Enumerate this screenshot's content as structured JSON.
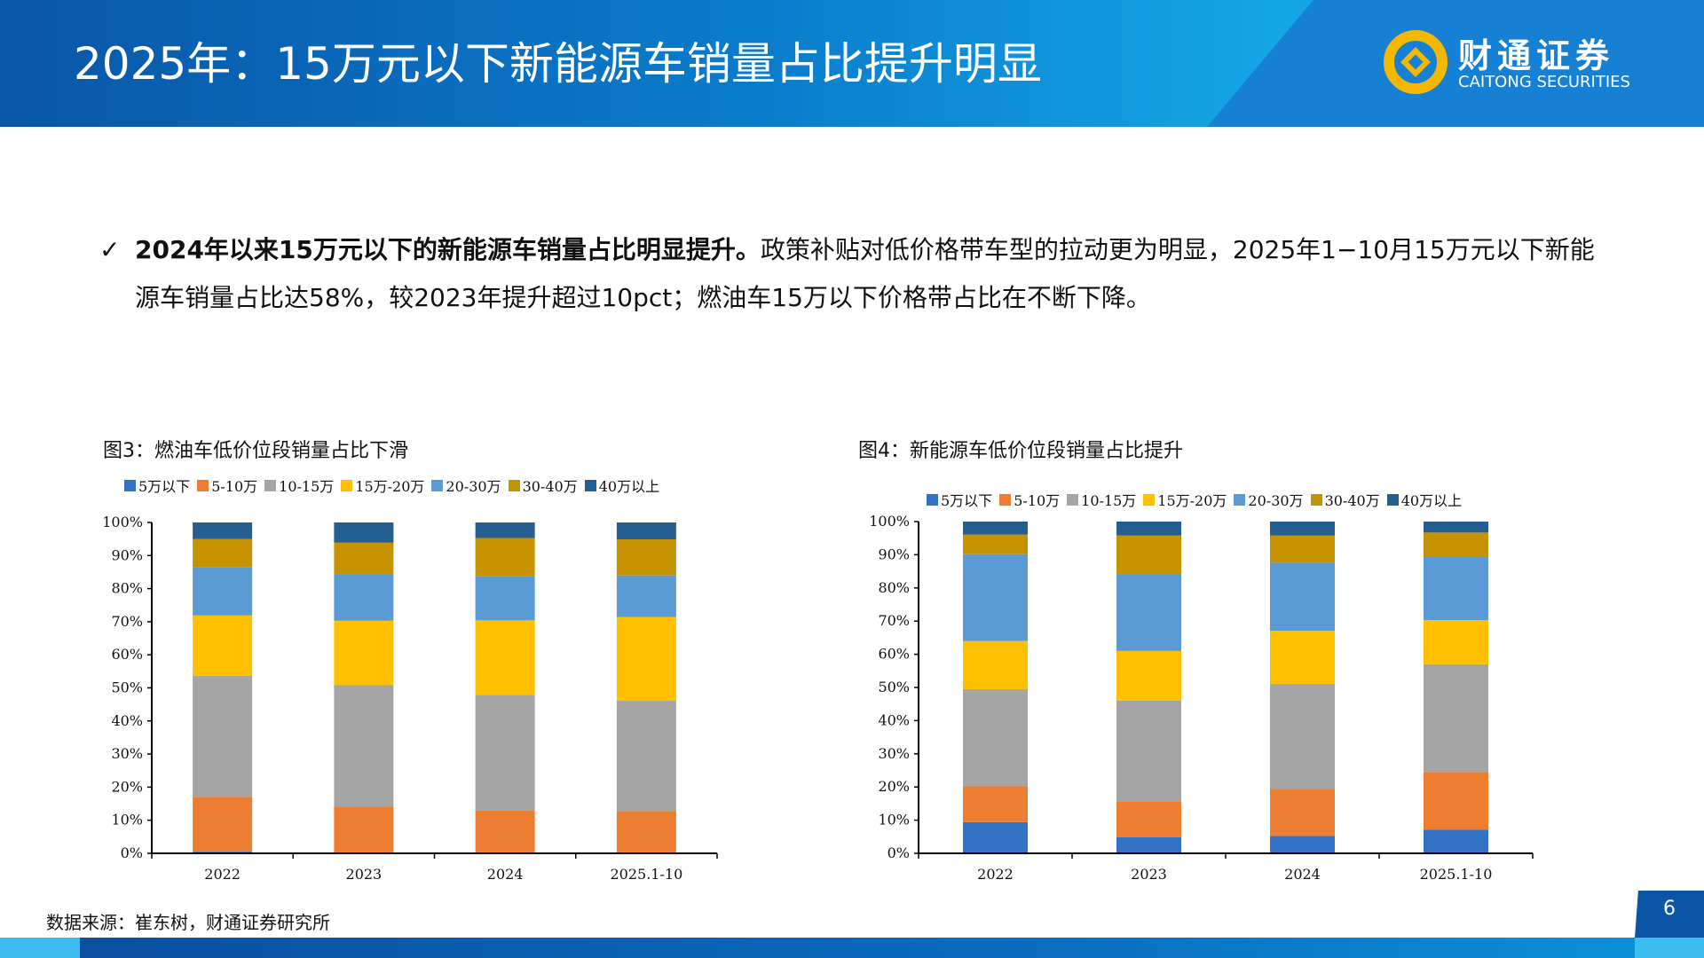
{
  "header": {
    "title": "2025年：15万元以下新能源车销量占比提升明显",
    "logo_cn": "财通证券",
    "logo_en": "CAITONG SECURITIES"
  },
  "bullet": {
    "icon": "check-icon",
    "bold": "2024年以来15万元以下的新能源车销量占比明显提升。",
    "text": "政策补贴对低价格带车型的拉动更为明显，2025年1−10月15万元以下新能源车销量占比达58%，较2023年提升超过10pct；燃油车15万以下价格带占比在不断下降。"
  },
  "legend": [
    "5万以下",
    "5-10万",
    "10-15万",
    "15万-20万",
    "20-30万",
    "30-40万",
    "40万以上"
  ],
  "colors": [
    "#3172c4",
    "#ed7d31",
    "#a5a5a5",
    "#ffc000",
    "#5b9bd5",
    "#c69200",
    "#255e91"
  ],
  "chart_data": [
    {
      "type": "bar",
      "stacked": true,
      "title": "图3：燃油车低价位段销量占比下滑",
      "categories": [
        "2022",
        "2023",
        "2024",
        "2025.1-10"
      ],
      "ylim": [
        0,
        100
      ],
      "yticks": [
        "0%",
        "10%",
        "20%",
        "30%",
        "40%",
        "50%",
        "60%",
        "70%",
        "80%",
        "90%",
        "100%"
      ],
      "legend_position": "top",
      "series": [
        {
          "name": "5万以下",
          "values": [
            0.5,
            0,
            0,
            0
          ]
        },
        {
          "name": "5-10万",
          "values": [
            16.6,
            14.1,
            12.9,
            12.8
          ]
        },
        {
          "name": "10-15万",
          "values": [
            36.6,
            36.7,
            35.0,
            33.3
          ]
        },
        {
          "name": "15万-20万",
          "values": [
            18.2,
            19.5,
            22.5,
            25.3
          ]
        },
        {
          "name": "20-30万",
          "values": [
            14.5,
            14.0,
            13.3,
            12.6
          ]
        },
        {
          "name": "30-40万",
          "values": [
            8.6,
            9.6,
            11.6,
            10.9
          ]
        },
        {
          "name": "40万以上",
          "values": [
            5.0,
            6.1,
            4.7,
            5.1
          ]
        }
      ]
    },
    {
      "type": "bar",
      "stacked": true,
      "title": "图4：新能源车低价位段销量占比提升",
      "categories": [
        "2022",
        "2023",
        "2024",
        "2025.1-10"
      ],
      "ylim": [
        0,
        100
      ],
      "yticks": [
        "0%",
        "10%",
        "20%",
        "30%",
        "40%",
        "50%",
        "60%",
        "70%",
        "80%",
        "90%",
        "100%"
      ],
      "legend_position": "top",
      "series": [
        {
          "name": "5万以下",
          "values": [
            9.4,
            4.9,
            5.2,
            7.1
          ]
        },
        {
          "name": "5-10万",
          "values": [
            10.8,
            10.8,
            14.2,
            17.4
          ]
        },
        {
          "name": "10-15万",
          "values": [
            29.3,
            30.3,
            31.7,
            32.5
          ]
        },
        {
          "name": "15万-20万",
          "values": [
            14.5,
            15.0,
            16.0,
            13.3
          ]
        },
        {
          "name": "20-30万",
          "values": [
            26.2,
            23.1,
            20.5,
            19.0
          ]
        },
        {
          "name": "30-40万",
          "values": [
            5.9,
            11.7,
            8.2,
            7.4
          ]
        },
        {
          "name": "40万以上",
          "values": [
            3.9,
            4.2,
            4.2,
            3.3
          ]
        }
      ]
    }
  ],
  "footer": {
    "source": "数据来源：崔东树，财通证券研究所",
    "page": "6"
  }
}
